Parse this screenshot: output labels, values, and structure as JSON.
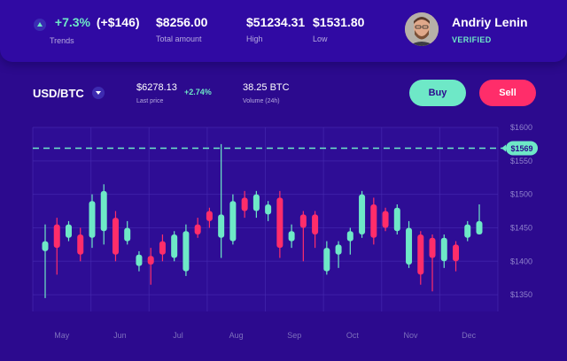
{
  "header": {
    "trend_pct": "+7.3%",
    "trend_abs": "(+$146)",
    "trend_label": "Trends",
    "total_amount": "$8256.00",
    "total_label": "Total amount",
    "high": "$51234.31",
    "high_label": "High",
    "low": "$1531.80",
    "low_label": "Low",
    "user_name": "Andriy Lenin",
    "user_status": "VERIFIED"
  },
  "market": {
    "pair": "USD/BTC",
    "last_price": "$6278.13",
    "last_change": "+2.74%",
    "last_label": "Last price",
    "volume": "38.25 BTC",
    "volume_label": "Volume (24h)",
    "buy_label": "Buy",
    "sell_label": "Sell"
  },
  "colors": {
    "background": "#2c0a8e",
    "up": "#6ee8c7",
    "down": "#ff2d6a",
    "accent": "#6ee8c7"
  },
  "chart_data": {
    "type": "candlestick",
    "x_labels": [
      "May",
      "Jun",
      "Jul",
      "Aug",
      "Sep",
      "Oct",
      "Nov",
      "Dec"
    ],
    "y_ticks": [
      "$1600",
      "$1550",
      "$1500",
      "$1450",
      "$1400",
      "$1350"
    ],
    "ylim": [
      1325,
      1600
    ],
    "current_price": 1569,
    "current_price_label": "$1569",
    "grid": true,
    "candles": [
      [
        1415,
        1430,
        1455,
        1345,
        "up"
      ],
      [
        1455,
        1420,
        1465,
        1380,
        "down"
      ],
      [
        1435,
        1455,
        1460,
        1430,
        "up"
      ],
      [
        1440,
        1410,
        1450,
        1400,
        "down"
      ],
      [
        1435,
        1490,
        1500,
        1420,
        "up"
      ],
      [
        1505,
        1445,
        1515,
        1425,
        "up"
      ],
      [
        1465,
        1410,
        1475,
        1400,
        "down"
      ],
      [
        1430,
        1450,
        1460,
        1425,
        "up"
      ],
      [
        1393,
        1410,
        1415,
        1385,
        "up"
      ],
      [
        1408,
        1395,
        1420,
        1365,
        "down"
      ],
      [
        1430,
        1410,
        1440,
        1400,
        "down"
      ],
      [
        1405,
        1440,
        1445,
        1400,
        "up"
      ],
      [
        1385,
        1445,
        1455,
        1378,
        "up"
      ],
      [
        1455,
        1440,
        1465,
        1435,
        "down"
      ],
      [
        1460,
        1475,
        1480,
        1450,
        "down"
      ],
      [
        1435,
        1470,
        1575,
        1405,
        "up"
      ],
      [
        1430,
        1490,
        1500,
        1425,
        "up"
      ],
      [
        1495,
        1475,
        1505,
        1465,
        "down"
      ],
      [
        1475,
        1500,
        1505,
        1465,
        "up"
      ],
      [
        1485,
        1470,
        1490,
        1460,
        "up"
      ],
      [
        1495,
        1420,
        1505,
        1405,
        "down"
      ],
      [
        1430,
        1445,
        1455,
        1420,
        "up"
      ],
      [
        1470,
        1450,
        1475,
        1400,
        "down"
      ],
      [
        1470,
        1440,
        1475,
        1420,
        "down"
      ],
      [
        1420,
        1385,
        1430,
        1380,
        "up"
      ],
      [
        1410,
        1425,
        1430,
        1390,
        "up"
      ],
      [
        1445,
        1430,
        1450,
        1410,
        "up"
      ],
      [
        1500,
        1440,
        1505,
        1435,
        "up"
      ],
      [
        1485,
        1435,
        1495,
        1425,
        "down"
      ],
      [
        1475,
        1450,
        1480,
        1445,
        "down"
      ],
      [
        1445,
        1480,
        1485,
        1440,
        "up"
      ],
      [
        1450,
        1395,
        1460,
        1390,
        "up"
      ],
      [
        1440,
        1380,
        1445,
        1365,
        "down"
      ],
      [
        1435,
        1405,
        1440,
        1355,
        "down"
      ],
      [
        1400,
        1435,
        1440,
        1390,
        "up"
      ],
      [
        1425,
        1400,
        1430,
        1385,
        "down"
      ],
      [
        1435,
        1455,
        1460,
        1430,
        "up"
      ],
      [
        1440,
        1460,
        1485,
        1440,
        "up"
      ]
    ]
  }
}
